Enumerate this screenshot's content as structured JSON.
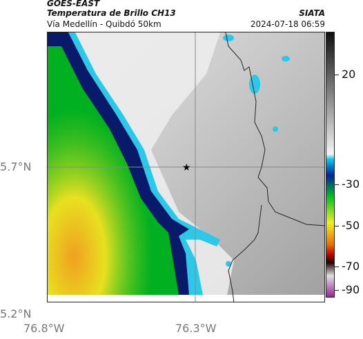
{
  "header": {
    "satellite": "GOES-EAST",
    "product": "Temperatura de Brillo CH13",
    "route": "Vía Medellín - Quibdó 50km",
    "org": "SIATA",
    "datetime": "2024-07-18 06:59"
  },
  "axes": {
    "lat_labels": [
      "5.7°N",
      "5.2°N"
    ],
    "lon_labels": [
      "76.8°W",
      "76.3°W"
    ]
  },
  "colorbar": {
    "labels": [
      "20",
      "-30",
      "-50",
      "-70",
      "-90"
    ]
  },
  "colors": {
    "cloud_cold": "#00a020",
    "cloud_warm_top": "#f0d020",
    "edge_dark": "#0a1a6a",
    "edge_cyan": "#2cc8e8",
    "land_gray": "#9a9a9a"
  },
  "marker": {
    "icon": "star-icon"
  }
}
